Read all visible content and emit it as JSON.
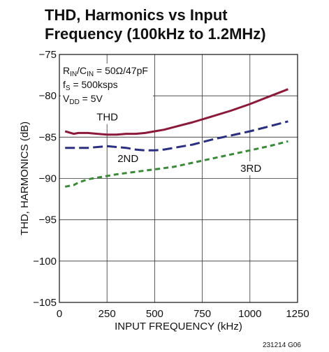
{
  "chart_data": {
    "type": "line",
    "title_lines": [
      "THD, Harmonics vs Input",
      "Frequency (100kHz to 1.2MHz)"
    ],
    "xlabel": "INPUT FREQUENCY (kHz)",
    "ylabel": "THD, HARMONICS (dB)",
    "xlim": [
      0,
      1250
    ],
    "ylim": [
      -105,
      -75
    ],
    "xticks": [
      0,
      250,
      500,
      750,
      1000,
      1250
    ],
    "xtick_labels": [
      "0",
      "250",
      "500",
      "750",
      "1000",
      "1250"
    ],
    "yticks": [
      -75,
      -80,
      -85,
      -90,
      -95,
      -100,
      -105
    ],
    "ytick_labels": [
      "−75",
      "−80",
      "−85",
      "−90",
      "−95",
      "−100",
      "−105"
    ],
    "grid": true,
    "conditions": [
      {
        "main": "R",
        "sub1": "IN",
        "mid": "/C",
        "sub2": "IN",
        "rest": " = 50Ω/47pF"
      },
      {
        "main": "f",
        "sub1": "S",
        "mid": "",
        "sub2": "",
        "rest": " = 500ksps"
      },
      {
        "main": "V",
        "sub1": "DD",
        "mid": "",
        "sub2": "",
        "rest": " = 5V"
      }
    ],
    "series": [
      {
        "name": "THD",
        "color": "#8b1a3a",
        "dash": "solid",
        "x": [
          30,
          75,
          100,
          150,
          200,
          250,
          300,
          350,
          400,
          450,
          500,
          550,
          600,
          700,
          800,
          900,
          1000,
          1100,
          1200
        ],
        "y": [
          -84.3,
          -84.6,
          -84.5,
          -84.5,
          -84.6,
          -84.7,
          -84.7,
          -84.6,
          -84.6,
          -84.5,
          -84.3,
          -84.1,
          -83.8,
          -83.2,
          -82.5,
          -81.8,
          -81.0,
          -80.1,
          -79.2
        ]
      },
      {
        "name": "2ND",
        "color": "#2b2f80",
        "dash": "longdash",
        "x": [
          30,
          100,
          150,
          200,
          250,
          300,
          350,
          400,
          450,
          500,
          550,
          600,
          700,
          800,
          900,
          1000,
          1100,
          1200
        ],
        "y": [
          -86.3,
          -86.3,
          -86.3,
          -86.2,
          -86.1,
          -86.2,
          -86.3,
          -86.5,
          -86.6,
          -86.6,
          -86.5,
          -86.3,
          -85.9,
          -85.3,
          -84.8,
          -84.3,
          -83.7,
          -83.1
        ]
      },
      {
        "name": "3RD",
        "color": "#3a8a3a",
        "dash": "shortdash",
        "x": [
          30,
          75,
          100,
          150,
          200,
          250,
          300,
          400,
          500,
          600,
          700,
          800,
          900,
          1000,
          1100,
          1200
        ],
        "y": [
          -91.0,
          -90.8,
          -90.5,
          -90.1,
          -89.9,
          -89.7,
          -89.5,
          -89.2,
          -88.9,
          -88.6,
          -88.1,
          -87.6,
          -87.1,
          -86.6,
          -86.1,
          -85.5
        ]
      }
    ]
  },
  "figure_code": "231214 G06"
}
